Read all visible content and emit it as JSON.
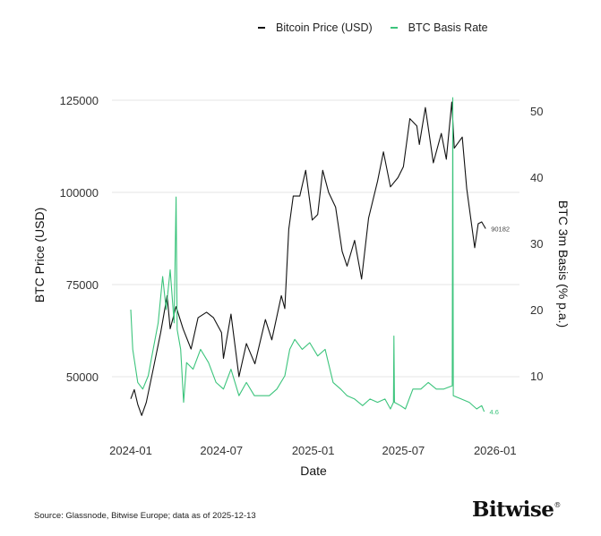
{
  "chart_data": {
    "type": "line",
    "title": "",
    "xlabel": "Date",
    "ylabel_left": "BTC Price (USD)",
    "ylabel_right": "BTC 3m Basis (% p.a.)",
    "x_ticks": [
      "2024-01",
      "2024-07",
      "2025-01",
      "2025-07",
      "2026-01"
    ],
    "y_left_ticks": [
      50000,
      75000,
      100000,
      125000
    ],
    "y_right_ticks": [
      10,
      20,
      30,
      40,
      50
    ],
    "y_left_range": [
      37000,
      128000
    ],
    "y_right_range": [
      3,
      53
    ],
    "grid": true,
    "legend_position": "top-right",
    "series": [
      {
        "name": "Bitcoin Price (USD)",
        "axis": "left",
        "color": "#111111",
        "last_label": "90182",
        "points": [
          [
            "2024-01-01",
            44000
          ],
          [
            "2024-01-08",
            46500
          ],
          [
            "2024-01-15",
            42500
          ],
          [
            "2024-01-23",
            39500
          ],
          [
            "2024-02-01",
            43000
          ],
          [
            "2024-02-15",
            52000
          ],
          [
            "2024-03-01",
            62000
          ],
          [
            "2024-03-14",
            72000
          ],
          [
            "2024-03-20",
            63000
          ],
          [
            "2024-04-01",
            69000
          ],
          [
            "2024-04-15",
            63000
          ],
          [
            "2024-05-01",
            57500
          ],
          [
            "2024-05-15",
            66000
          ],
          [
            "2024-06-01",
            67500
          ],
          [
            "2024-06-15",
            66000
          ],
          [
            "2024-07-01",
            62000
          ],
          [
            "2024-07-05",
            55000
          ],
          [
            "2024-07-20",
            67000
          ],
          [
            "2024-08-05",
            50000
          ],
          [
            "2024-08-20",
            59000
          ],
          [
            "2024-09-06",
            53500
          ],
          [
            "2024-09-27",
            65500
          ],
          [
            "2024-10-10",
            60000
          ],
          [
            "2024-10-29",
            72000
          ],
          [
            "2024-11-05",
            68500
          ],
          [
            "2024-11-13",
            90000
          ],
          [
            "2024-11-22",
            99000
          ],
          [
            "2024-12-05",
            99000
          ],
          [
            "2024-12-17",
            106000
          ],
          [
            "2024-12-30",
            92500
          ],
          [
            "2025-01-10",
            94000
          ],
          [
            "2025-01-20",
            106000
          ],
          [
            "2025-02-01",
            100000
          ],
          [
            "2025-02-15",
            96000
          ],
          [
            "2025-02-28",
            84000
          ],
          [
            "2025-03-10",
            80000
          ],
          [
            "2025-03-25",
            87000
          ],
          [
            "2025-04-08",
            76500
          ],
          [
            "2025-04-22",
            93000
          ],
          [
            "2025-05-10",
            103000
          ],
          [
            "2025-05-22",
            111000
          ],
          [
            "2025-06-05",
            101500
          ],
          [
            "2025-06-20",
            104000
          ],
          [
            "2025-07-01",
            107000
          ],
          [
            "2025-07-14",
            120000
          ],
          [
            "2025-07-28",
            118000
          ],
          [
            "2025-08-02",
            113000
          ],
          [
            "2025-08-14",
            123000
          ],
          [
            "2025-08-30",
            108000
          ],
          [
            "2025-09-15",
            116000
          ],
          [
            "2025-09-25",
            109000
          ],
          [
            "2025-10-06",
            124500
          ],
          [
            "2025-10-11",
            112000
          ],
          [
            "2025-10-27",
            115000
          ],
          [
            "2025-11-05",
            101000
          ],
          [
            "2025-11-21",
            85000
          ],
          [
            "2025-11-28",
            91500
          ],
          [
            "2025-12-05",
            92000
          ],
          [
            "2025-12-13",
            90182
          ]
        ]
      },
      {
        "name": "BTC Basis Rate",
        "axis": "right",
        "color": "#3cc47c",
        "last_label": "4.6",
        "points": [
          [
            "2024-01-01",
            20
          ],
          [
            "2024-01-05",
            14
          ],
          [
            "2024-01-15",
            9
          ],
          [
            "2024-01-25",
            8
          ],
          [
            "2024-02-05",
            10
          ],
          [
            "2024-02-15",
            14
          ],
          [
            "2024-02-25",
            18
          ],
          [
            "2024-03-05",
            25
          ],
          [
            "2024-03-12",
            20
          ],
          [
            "2024-03-20",
            26
          ],
          [
            "2024-03-28",
            18
          ],
          [
            "2024-04-01",
            37
          ],
          [
            "2024-04-03",
            17
          ],
          [
            "2024-04-10",
            14
          ],
          [
            "2024-04-16",
            6
          ],
          [
            "2024-04-22",
            12
          ],
          [
            "2024-05-05",
            11
          ],
          [
            "2024-05-20",
            14
          ],
          [
            "2024-06-05",
            12
          ],
          [
            "2024-06-20",
            9
          ],
          [
            "2024-07-05",
            8
          ],
          [
            "2024-07-20",
            11
          ],
          [
            "2024-08-05",
            7
          ],
          [
            "2024-08-20",
            9
          ],
          [
            "2024-09-05",
            7
          ],
          [
            "2024-09-20",
            7
          ],
          [
            "2024-10-05",
            7
          ],
          [
            "2024-10-20",
            8
          ],
          [
            "2024-11-05",
            10
          ],
          [
            "2024-11-15",
            14
          ],
          [
            "2024-11-25",
            15.5
          ],
          [
            "2024-12-10",
            14
          ],
          [
            "2024-12-25",
            15
          ],
          [
            "2025-01-10",
            13
          ],
          [
            "2025-01-25",
            14
          ],
          [
            "2025-02-10",
            9
          ],
          [
            "2025-02-25",
            8
          ],
          [
            "2025-03-10",
            7
          ],
          [
            "2025-03-25",
            6.5
          ],
          [
            "2025-04-10",
            5.5
          ],
          [
            "2025-04-25",
            6.5
          ],
          [
            "2025-05-10",
            6
          ],
          [
            "2025-05-25",
            6.5
          ],
          [
            "2025-06-05",
            5
          ],
          [
            "2025-06-11",
            6
          ],
          [
            "2025-06-12",
            16
          ],
          [
            "2025-06-13",
            6
          ],
          [
            "2025-06-25",
            5.5
          ],
          [
            "2025-07-05",
            5
          ],
          [
            "2025-07-20",
            8
          ],
          [
            "2025-08-05",
            8
          ],
          [
            "2025-08-20",
            9
          ],
          [
            "2025-09-05",
            8
          ],
          [
            "2025-09-20",
            8
          ],
          [
            "2025-10-07",
            8.5
          ],
          [
            "2025-10-08",
            52
          ],
          [
            "2025-10-09",
            7
          ],
          [
            "2025-10-25",
            6.5
          ],
          [
            "2025-11-10",
            6
          ],
          [
            "2025-11-25",
            5
          ],
          [
            "2025-12-05",
            5.5
          ],
          [
            "2025-12-10",
            4.6
          ]
        ]
      }
    ]
  },
  "legend": {
    "price_label": "Bitcoin Price (USD)",
    "basis_label": "BTC Basis Rate"
  },
  "source": "Source: Glassnode, Bitwise Europe; data as of 2025-12-13",
  "logo": "Bitwise"
}
